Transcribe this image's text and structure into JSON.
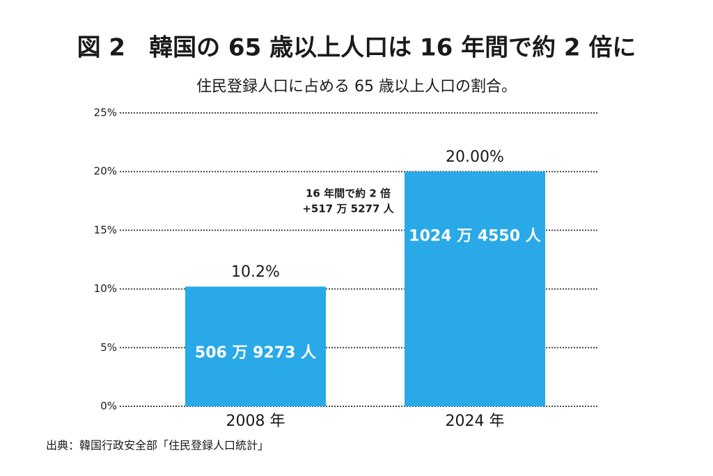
{
  "chart_data": {
    "type": "bar",
    "title": "図 2　韓国の 65 歳以上人口は 16 年間で約 2 倍に",
    "subtitle": "住民登録人口に占める 65 歳以上人口の割合。",
    "categories": [
      "2008 年",
      "2024 年"
    ],
    "values": [
      10.2,
      20.0
    ],
    "value_labels": [
      "10.2%",
      "20.00%"
    ],
    "bar_labels": [
      "506 万 9273 人",
      "1024 万 4550 人"
    ],
    "annotations": [
      "16 年間で約 2 倍",
      "+517 万 5277 人"
    ],
    "source": "出典：韓国行政安全部「住民登録人口統計」",
    "color": "#29a9e8",
    "ylim": [
      0,
      25
    ],
    "yticks": [
      {
        "value": 0,
        "label": "0%"
      },
      {
        "value": 5,
        "label": "5%"
      },
      {
        "value": 10,
        "label": "10%"
      },
      {
        "value": 15,
        "label": "15%"
      },
      {
        "value": 20,
        "label": "20%"
      },
      {
        "value": 25,
        "label": "25%"
      }
    ],
    "grid": true
  }
}
